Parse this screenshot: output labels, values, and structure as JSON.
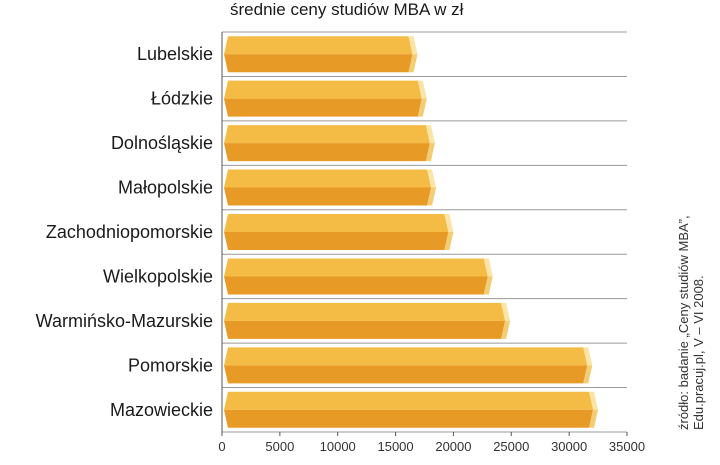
{
  "chart_data": {
    "type": "bar",
    "orientation": "horizontal",
    "title": "średnie ceny studiów MBA w zł",
    "xlabel": "",
    "ylabel": "",
    "categories": [
      "Lubelskie",
      "Łódzkie",
      "Dolnośląskie",
      "Małopolskie",
      "Zachodniopomorskie",
      "Wielkopolskie",
      "Warmińsko-Mazurskie",
      "Pomorskie",
      "Mazowieckie"
    ],
    "values": [
      16900,
      17700,
      18400,
      18500,
      20000,
      23400,
      24900,
      32000,
      32500
    ],
    "xlim": [
      0,
      35000
    ],
    "xticks": [
      "0",
      "5000",
      "10000",
      "15000",
      "20000",
      "25000",
      "30000",
      "35000"
    ],
    "grid": true,
    "colors": {
      "bar_top": "#f5bc45",
      "bar_bottom": "#e89a27",
      "bar_end_top": "#fbe4a6",
      "bar_end_bottom": "#f3cd73",
      "grid": "#9a9a9a"
    }
  },
  "source_note": [
    "źródło: badanie „Ceny studiów MBA”,",
    "Edu.pracuj.pl, V – VI 2008."
  ]
}
